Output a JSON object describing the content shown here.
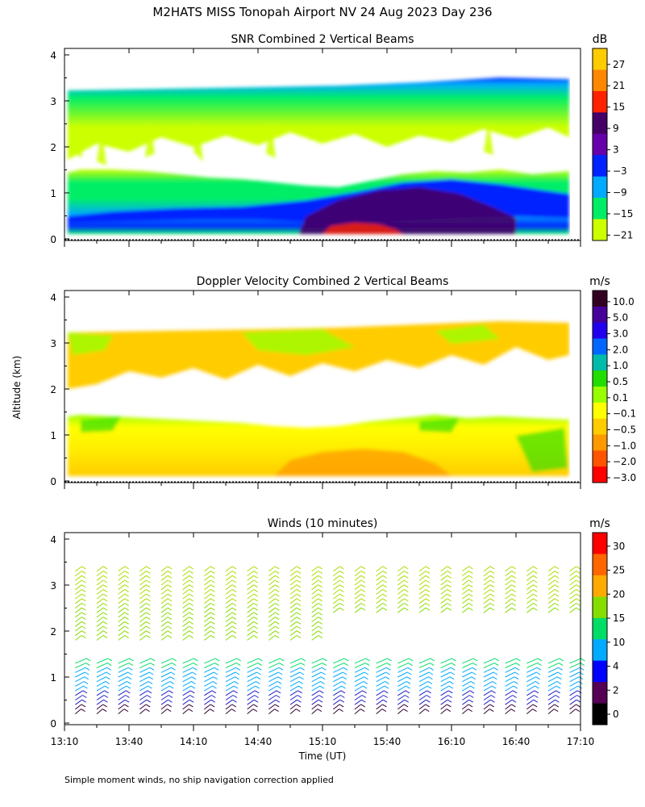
{
  "figure": {
    "title": "M2HATS MISS Tonopah Airport NV  24 Aug 2023 Day 236",
    "ylabel": "Altitude (km)",
    "xlabel": "Time (UT)",
    "footnote": "Simple moment winds, no ship navigation correction applied"
  },
  "chart_data": [
    {
      "type": "heatmap",
      "title": "SNR Combined 2 Vertical Beams",
      "colorbar_unit": "dB",
      "colorbar_labels": [
        "27",
        "21",
        "15",
        "9",
        "3",
        "−3",
        "−9",
        "−15",
        "−21"
      ],
      "colorbar_colors": [
        "#ffcc00",
        "#ff8800",
        "#ff2200",
        "#440066",
        "#6600aa",
        "#0022ff",
        "#00aaff",
        "#00ee66",
        "#ccff00"
      ],
      "x_range_hours_ut": [
        13.1667,
        17.1667
      ],
      "y_range_km": [
        0,
        4
      ],
      "y_ticks": [
        "0",
        "1",
        "2",
        "3",
        "4"
      ],
      "x_ticks": [],
      "layers": [
        {
          "time": "13:10-17:05",
          "altitude_km": "0.1-0.5",
          "approx_db": "3 to 15"
        },
        {
          "time": "13:10-17:05",
          "altitude_km": "0.5-1.4",
          "approx_db": "-15 to -3"
        },
        {
          "time": "13:10-17:05",
          "altitude_km": "1.8-3.3",
          "approx_db": "-21 to -9"
        }
      ]
    },
    {
      "type": "heatmap",
      "title": "Doppler Velocity Combined 2 Vertical Beams",
      "colorbar_unit": "m/s",
      "colorbar_labels": [
        "10.0",
        "5.0",
        "3.0",
        "2.0",
        "1.0",
        "0.5",
        "0.1",
        "−0.1",
        "−0.5",
        "−1.0",
        "−2.0",
        "−3.0"
      ],
      "colorbar_colors": [
        "#330022",
        "#440099",
        "#2200ee",
        "#0066ff",
        "#00bbaa",
        "#22dd00",
        "#99ff00",
        "#ffff00",
        "#ffcc00",
        "#ff9900",
        "#ff5500",
        "#ff0000"
      ],
      "x_range_hours_ut": [
        13.1667,
        17.1667
      ],
      "y_range_km": [
        0,
        4
      ],
      "y_ticks": [
        "0",
        "1",
        "2",
        "3",
        "4"
      ],
      "x_ticks": []
    },
    {
      "type": "scatter",
      "title": "Winds (10 minutes)",
      "colorbar_unit": "m/s",
      "colorbar_labels": [
        "30",
        "25",
        "20",
        "15",
        "10",
        "4",
        "2",
        "0"
      ],
      "colorbar_colors": [
        "#ff0000",
        "#ff6600",
        "#ffaa00",
        "#88dd00",
        "#00dd66",
        "#00aaff",
        "#0000ff",
        "#550055",
        "#000000"
      ],
      "x_range_hours_ut": [
        13.1667,
        17.1667
      ],
      "y_range_km": [
        0,
        4
      ],
      "y_ticks": [
        "0",
        "1",
        "2",
        "3",
        "4"
      ],
      "x_ticks": [
        "13:10",
        "13:40",
        "14:10",
        "14:40",
        "15:10",
        "15:40",
        "16:10",
        "16:40",
        "17:10"
      ],
      "wind_profile_times_ut": [
        "13:15",
        "13:25",
        "13:35",
        "13:45",
        "13:55",
        "14:05",
        "14:15",
        "14:25",
        "14:35",
        "14:45",
        "14:55",
        "15:05",
        "15:15",
        "15:25",
        "15:35",
        "15:45",
        "15:55",
        "16:05",
        "16:15",
        "16:25",
        "16:35",
        "16:45",
        "16:55",
        "17:05"
      ]
    }
  ]
}
